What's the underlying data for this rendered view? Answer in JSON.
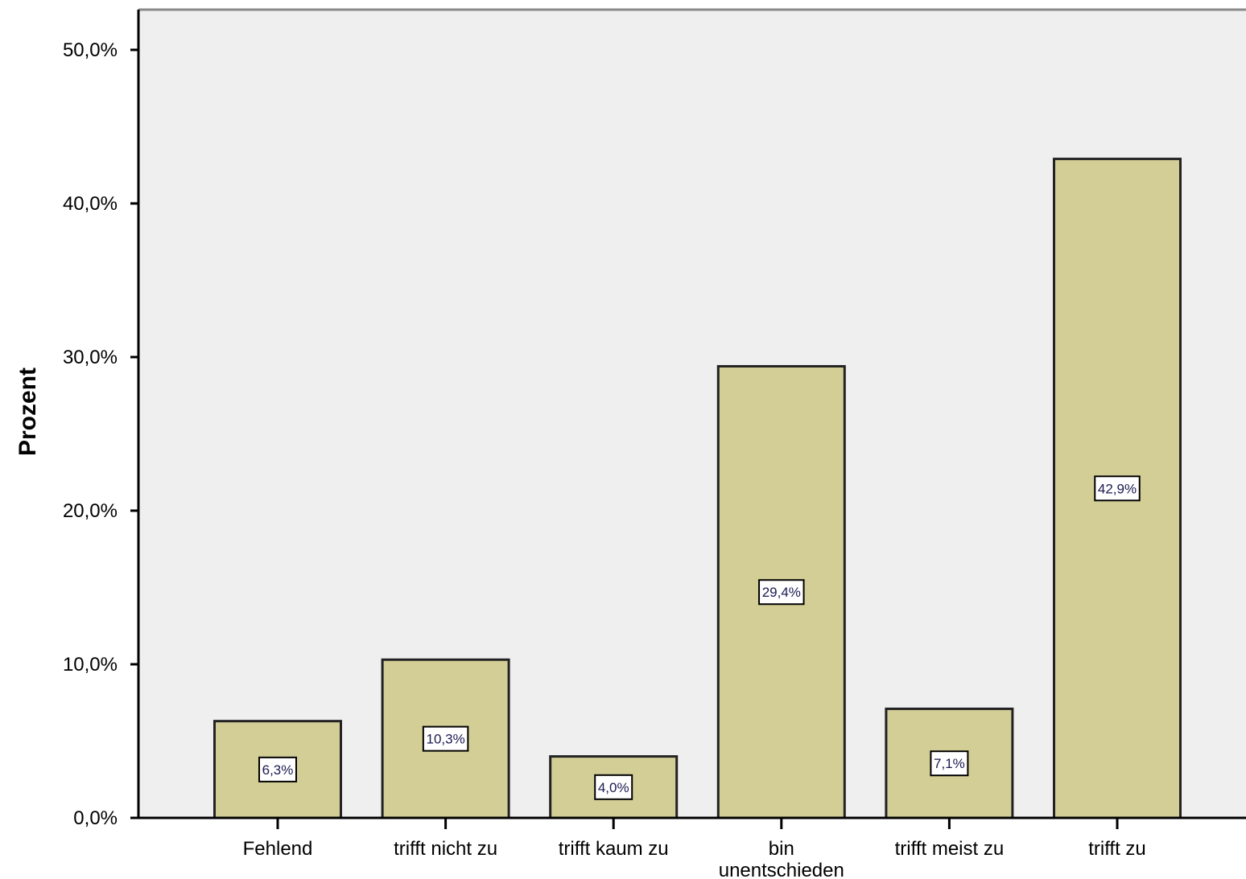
{
  "chart_data": {
    "type": "bar",
    "title": "",
    "xlabel": "",
    "ylabel": "Prozent",
    "categories": [
      "Fehlend",
      "trifft nicht zu",
      "trifft kaum zu",
      "bin unentschieden",
      "trifft meist zu",
      "trifft zu"
    ],
    "category_lines": [
      [
        "Fehlend"
      ],
      [
        "trifft nicht zu"
      ],
      [
        "trifft kaum zu"
      ],
      [
        "bin",
        "unentschieden"
      ],
      [
        "trifft meist zu"
      ],
      [
        "trifft zu"
      ]
    ],
    "values": [
      6.3,
      10.3,
      4.0,
      29.4,
      7.1,
      42.9
    ],
    "data_labels": [
      "6,3%",
      "10,3%",
      "4,0%",
      "29,4%",
      "7,1%",
      "42,9%"
    ],
    "ylim": [
      0,
      52
    ],
    "yticks": [
      0,
      10,
      20,
      30,
      40,
      50
    ],
    "ytick_labels": [
      "0,0%",
      "10,0%",
      "20,0%",
      "30,0%",
      "40,0%",
      "50,0%"
    ],
    "grid": false,
    "colors": {
      "plot_background": "#efefef",
      "bar_fill": "#d3ce96",
      "bar_stroke": "#222222",
      "axis": "#000000",
      "frame": "#8a8a8a",
      "label_box_fill": "#ffffff",
      "label_text": "#1a1a50"
    }
  }
}
